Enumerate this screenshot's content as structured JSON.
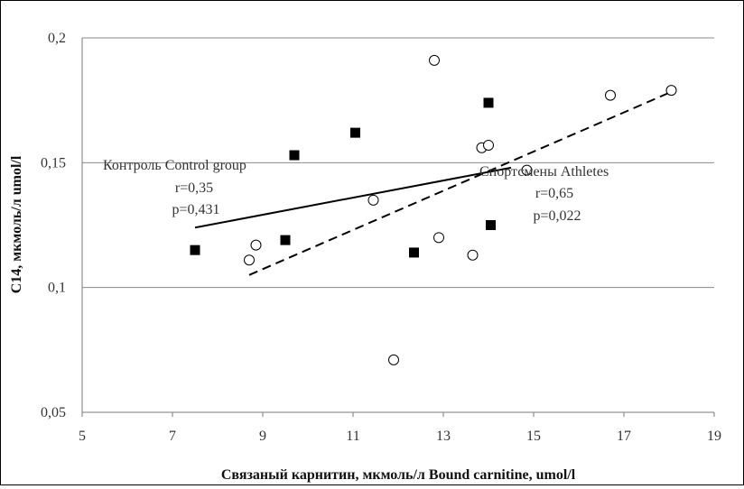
{
  "chart_data": {
    "type": "scatter",
    "title": "",
    "xlabel": "Связаный карнитин,  мкмоль/л  Bound carnitine, umol/l",
    "ylabel": "С14, мкмоль/л umol/l",
    "xlim": [
      5,
      19
    ],
    "ylim": [
      0.05,
      0.2
    ],
    "x_ticks": [
      5,
      7,
      9,
      11,
      13,
      15,
      17,
      19
    ],
    "x_tick_labels": [
      "5",
      "7",
      "9",
      "11",
      "13",
      "15",
      "17",
      "19"
    ],
    "y_ticks": [
      0.05,
      0.1,
      0.15,
      0.2
    ],
    "y_tick_labels": [
      "0,05",
      "0,1",
      "0,15",
      "0,2"
    ],
    "grid": "horizontal",
    "series": [
      {
        "marker": "filled-square",
        "color": "#000000",
        "points": [
          {
            "x": 7.5,
            "y": 0.115
          },
          {
            "x": 9.5,
            "y": 0.119
          },
          {
            "x": 9.7,
            "y": 0.153
          },
          {
            "x": 11.05,
            "y": 0.162
          },
          {
            "x": 12.35,
            "y": 0.114
          },
          {
            "x": 14.0,
            "y": 0.174
          },
          {
            "x": 14.05,
            "y": 0.125
          }
        ],
        "trendline": {
          "style": "solid",
          "x": [
            7.5,
            14.5
          ],
          "y": [
            0.124,
            0.148
          ]
        },
        "annotation": [
          "Контроль  Control group",
          "r=0,35",
          "p=0,431"
        ]
      },
      {
        "marker": "open-circle",
        "color": "#000000",
        "points": [
          {
            "x": 8.7,
            "y": 0.111
          },
          {
            "x": 8.85,
            "y": 0.117
          },
          {
            "x": 11.45,
            "y": 0.135
          },
          {
            "x": 11.9,
            "y": 0.071
          },
          {
            "x": 12.8,
            "y": 0.191
          },
          {
            "x": 12.9,
            "y": 0.12
          },
          {
            "x": 13.65,
            "y": 0.113
          },
          {
            "x": 13.85,
            "y": 0.156
          },
          {
            "x": 14.0,
            "y": 0.157
          },
          {
            "x": 14.85,
            "y": 0.147
          },
          {
            "x": 16.7,
            "y": 0.177
          },
          {
            "x": 18.05,
            "y": 0.179
          }
        ],
        "trendline": {
          "style": "dashed",
          "x": [
            8.7,
            18.0
          ],
          "y": [
            0.105,
            0.178
          ]
        },
        "annotation": [
          "Спортсмены Athletes",
          "r=0,65",
          "p=0,022"
        ]
      }
    ]
  }
}
